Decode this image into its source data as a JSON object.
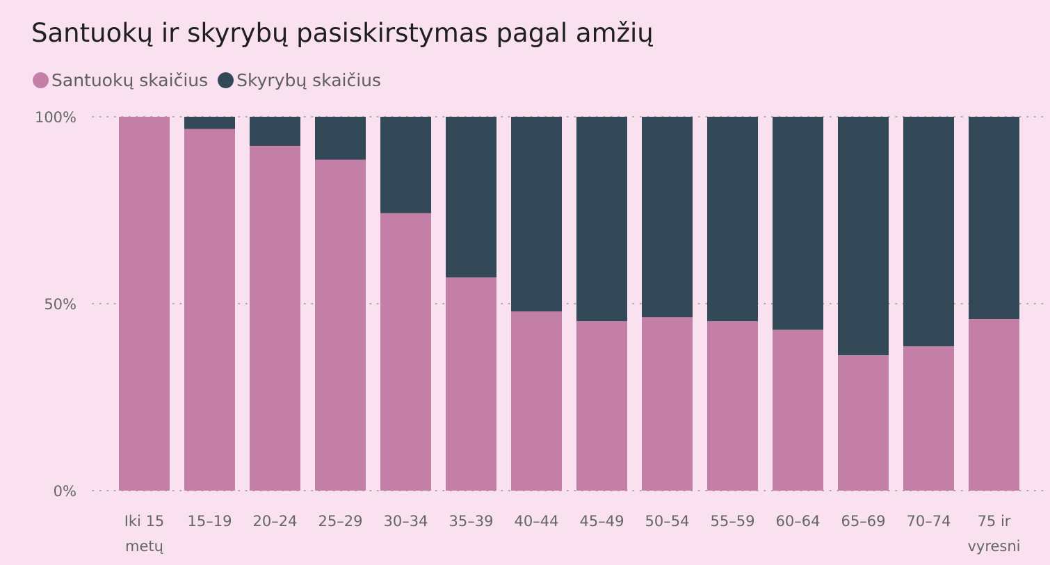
{
  "title": "Santuokų ir skyrybų pasiskirstymas pagal amžių",
  "colors": {
    "marriages": "#c47fa6",
    "divorces": "#344958",
    "background": "#f9e1f0",
    "grid": "#9a8f96"
  },
  "chart_data": {
    "type": "bar",
    "stacked": "percent",
    "title": "Santuokų ir skyrybų pasiskirstymas pagal amžių",
    "legend_position": "top-left",
    "categories": [
      "Iki 15 metų",
      "15–19",
      "20–24",
      "25–29",
      "30–34",
      "35–39",
      "40–44",
      "45–49",
      "50–54",
      "55–59",
      "60–64",
      "65–69",
      "70–74",
      "75 ir vyresni"
    ],
    "category_lines": [
      [
        "Iki 15",
        "metų"
      ],
      [
        "15–19"
      ],
      [
        "20–24"
      ],
      [
        "25–29"
      ],
      [
        "30–34"
      ],
      [
        "35–39"
      ],
      [
        "40–44"
      ],
      [
        "45–49"
      ],
      [
        "50–54"
      ],
      [
        "55–59"
      ],
      [
        "60–64"
      ],
      [
        "65–69"
      ],
      [
        "70–74"
      ],
      [
        "75 ir",
        "vyresni"
      ]
    ],
    "series": [
      {
        "name": "Santuokų skaičius",
        "values": [
          100,
          96.7,
          92.2,
          88.5,
          74.2,
          57.0,
          47.9,
          45.3,
          46.4,
          45.3,
          43.0,
          36.2,
          38.6,
          45.9
        ]
      },
      {
        "name": "Skyrybų skaičius",
        "values": [
          0,
          3.3,
          7.8,
          11.5,
          25.8,
          43.0,
          52.1,
          54.7,
          53.6,
          54.7,
          57.0,
          63.8,
          61.4,
          54.1
        ]
      }
    ],
    "y_ticks": [
      "0%",
      "50%",
      "100%"
    ],
    "y_tick_values": [
      0,
      50,
      100
    ],
    "ylim": [
      0,
      100
    ],
    "grid": true
  }
}
